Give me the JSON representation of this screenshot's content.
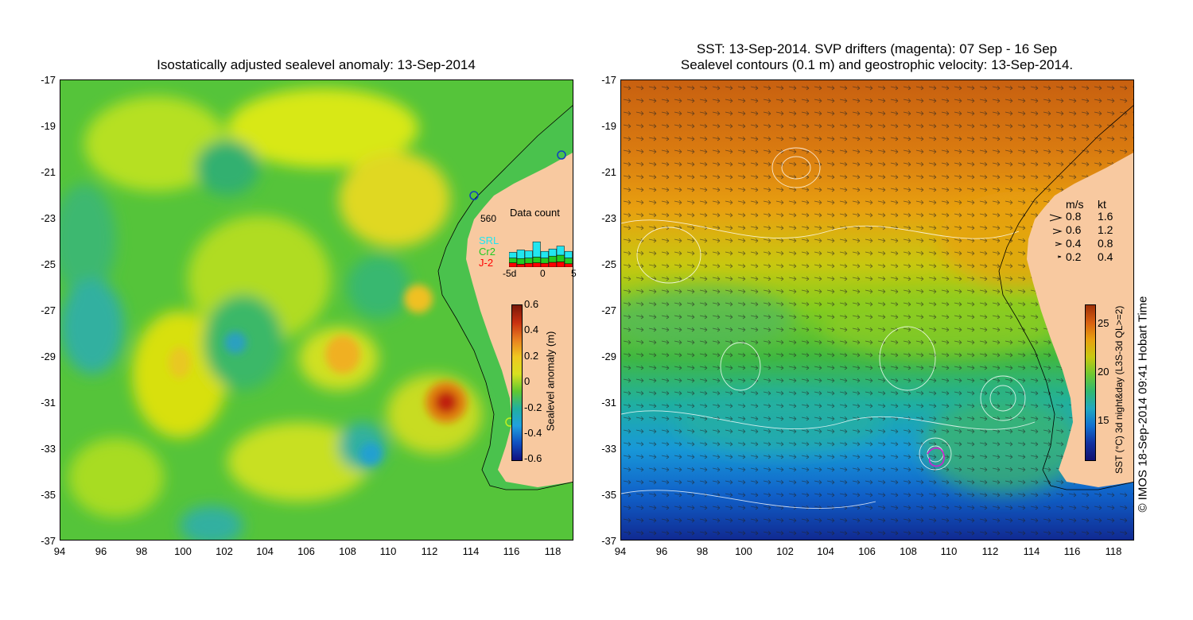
{
  "left_panel": {
    "title": "Isostatically adjusted sealevel anomaly: 13-Sep-2014",
    "colorbar": {
      "label": "Sealevel anomaly (m)",
      "ticks": [
        "0.6",
        "0.4",
        "0.2",
        "0",
        "-0.2",
        "-0.4",
        "-0.6"
      ],
      "min": -0.6,
      "max": 0.6
    },
    "data_count": {
      "title": "Data count",
      "max_label": "560",
      "max_value": 560,
      "legend": [
        {
          "name": "SRL",
          "color": "#22e6f0"
        },
        {
          "name": "Cr2",
          "color": "#22cc22"
        },
        {
          "name": "J-2",
          "color": "#ff0000"
        }
      ],
      "x_ticks": [
        "-5d",
        "0",
        "5"
      ],
      "bars": [
        {
          "j2": 90,
          "cr2": 100,
          "srl": 120
        },
        {
          "j2": 60,
          "cr2": 120,
          "srl": 180
        },
        {
          "j2": 80,
          "cr2": 110,
          "srl": 150
        },
        {
          "j2": 90,
          "cr2": 120,
          "srl": 320
        },
        {
          "j2": 80,
          "cr2": 110,
          "srl": 140
        },
        {
          "j2": 100,
          "cr2": 130,
          "srl": 150
        },
        {
          "j2": 110,
          "cr2": 140,
          "srl": 190
        },
        {
          "j2": 70,
          "cr2": 120,
          "srl": 140
        }
      ]
    }
  },
  "right_panel": {
    "title_line1": "SST: 13-Sep-2014. SVP drifters (magenta): 07 Sep - 16 Sep",
    "title_line2": "Sealevel contours (0.1 m) and geostrophic velocity: 13-Sep-2014.",
    "colorbar": {
      "label": "SST (°C) 3d night&day (L3S-3d QL>=2)",
      "ticks": [
        "25",
        "20",
        "15"
      ],
      "min": 12,
      "max": 28
    },
    "velocity_legend": {
      "header_ms": "m/s",
      "header_kt": "kt",
      "rows": [
        {
          "ms": "0.8",
          "kt": "1.6"
        },
        {
          "ms": "0.6",
          "kt": "1.2"
        },
        {
          "ms": "0.4",
          "kt": "0.8"
        },
        {
          "ms": "0.2",
          "kt": "0.4"
        }
      ]
    },
    "credit": "© IMOS 18-Sep-2014 09:41 Hobart Time"
  },
  "axes": {
    "x_ticks": [
      "94",
      "96",
      "98",
      "100",
      "102",
      "104",
      "106",
      "108",
      "110",
      "112",
      "114",
      "116",
      "118"
    ],
    "y_ticks": [
      "-17",
      "-19",
      "-21",
      "-23",
      "-25",
      "-27",
      "-29",
      "-31",
      "-33",
      "-35",
      "-37"
    ],
    "lon_range": [
      94,
      119
    ],
    "lat_range": [
      -37,
      -17
    ]
  },
  "colors": {
    "land": "#f8c9a0",
    "sla_mean": "#4ccc40",
    "sst_warm": "#d97a10",
    "sst_mid": "#7acc20",
    "sst_cool": "#1080d0"
  }
}
